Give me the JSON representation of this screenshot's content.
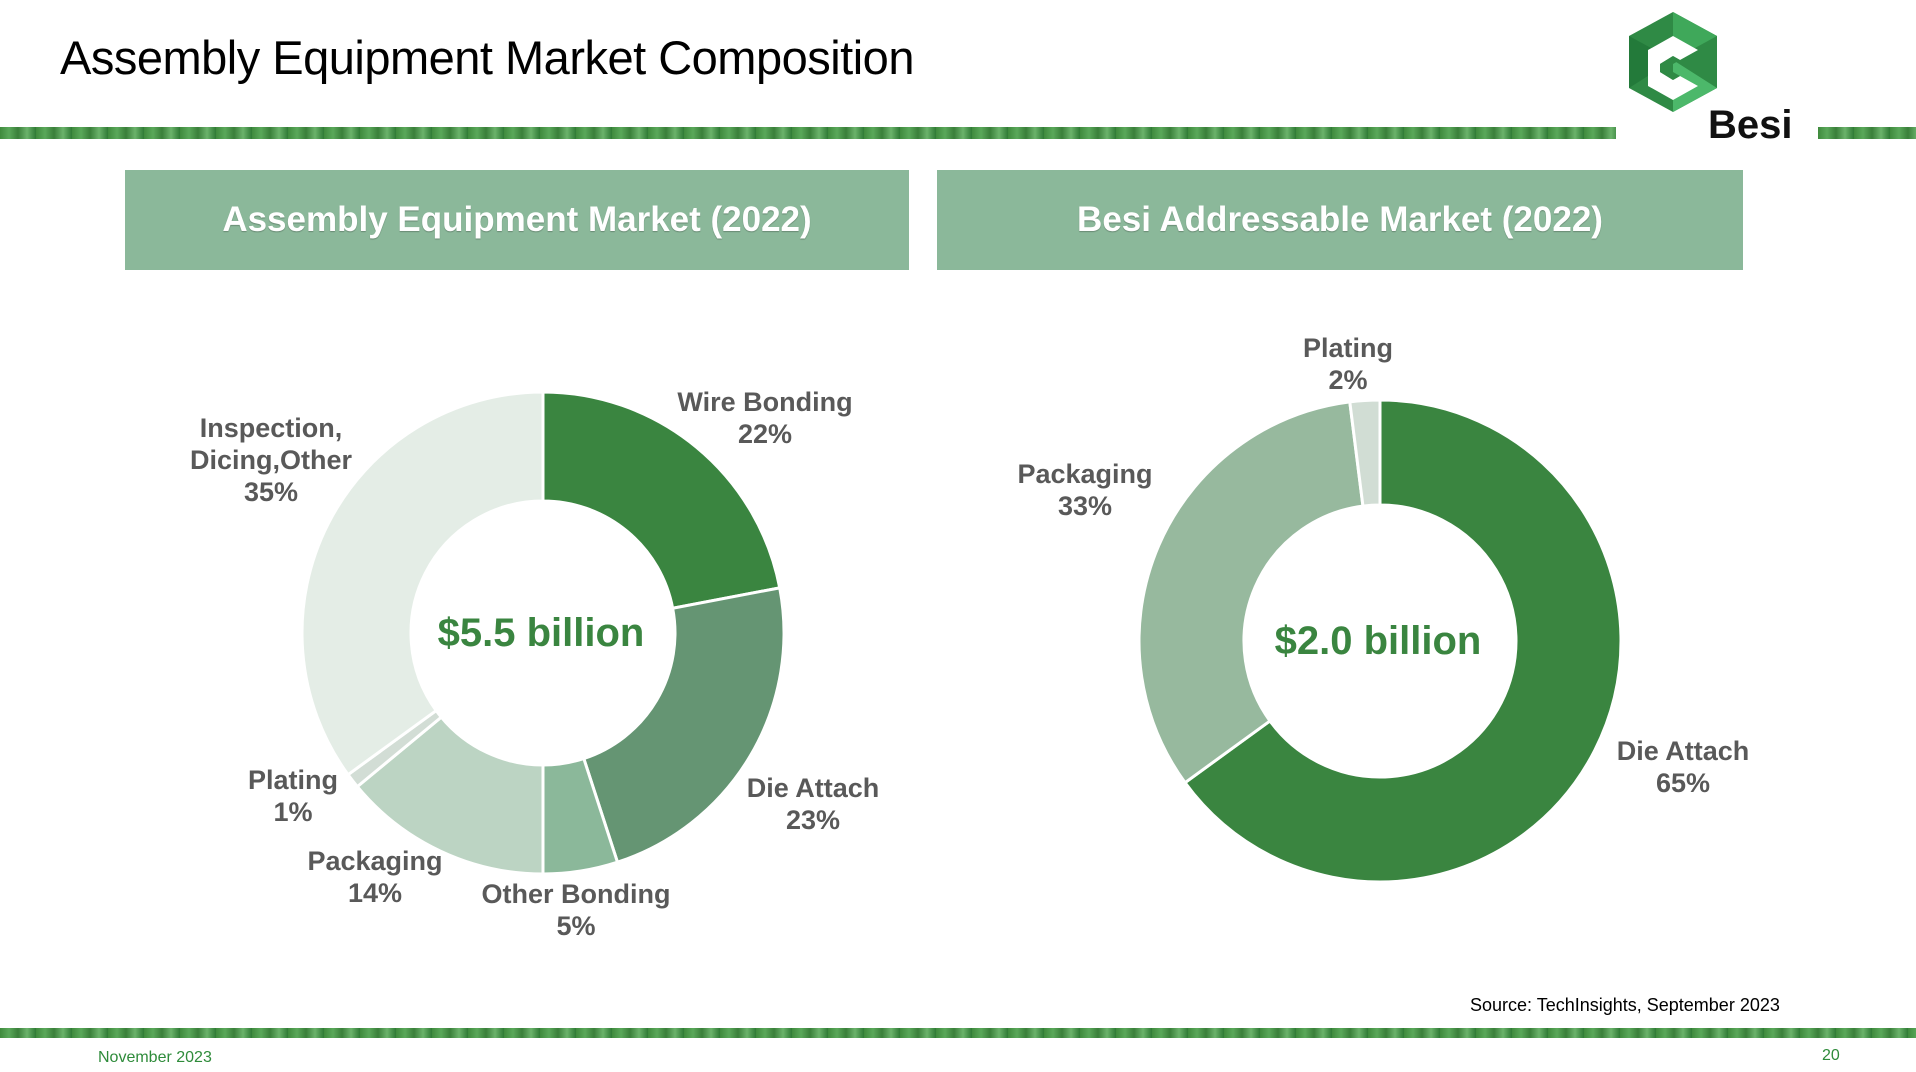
{
  "slide": {
    "title": "Assembly Equipment Market Composition",
    "source": "Source: TechInsights, September 2023",
    "date": "November 2023",
    "page_number": "20",
    "logo_text": "Besi"
  },
  "panels": [
    {
      "header": "Assembly Equipment Market (2022)",
      "center_label": "$5.5 billion"
    },
    {
      "header": "Besi Addressable Market (2022)",
      "center_label": "$2.0 billion"
    }
  ],
  "colors": {
    "brand_green": "#3a8540",
    "header_fill": "#8bb89a",
    "label_gray": "#595959"
  },
  "chart_data": [
    {
      "type": "pie",
      "donut": true,
      "title": "Assembly Equipment Market (2022)",
      "center_label": "$5.5 billion",
      "slices": [
        {
          "label": "Wire Bonding",
          "value": 22,
          "pct_label": "22%",
          "color": "#3a8540"
        },
        {
          "label": "Die Attach",
          "value": 23,
          "pct_label": "23%",
          "color": "#659573"
        },
        {
          "label": "Other Bonding",
          "value": 5,
          "pct_label": "5%",
          "color": "#8bb89a"
        },
        {
          "label": "Packaging",
          "value": 14,
          "pct_label": "14%",
          "color": "#bcd4c3"
        },
        {
          "label": "Plating",
          "value": 1,
          "pct_label": "1%",
          "color": "#d2ddd5"
        },
        {
          "label": "Inspection,\nDicing,Other",
          "value": 35,
          "pct_label": "35%",
          "color": "#e4ede6"
        }
      ]
    },
    {
      "type": "pie",
      "donut": true,
      "title": "Besi Addressable Market (2022)",
      "center_label": "$2.0 billion",
      "slices": [
        {
          "label": "Die Attach",
          "value": 65,
          "pct_label": "65%",
          "color": "#3a8540"
        },
        {
          "label": "Packaging",
          "value": 33,
          "pct_label": "33%",
          "color": "#97b99e"
        },
        {
          "label": "Plating",
          "value": 2,
          "pct_label": "2%",
          "color": "#d1ddd4"
        }
      ]
    }
  ]
}
